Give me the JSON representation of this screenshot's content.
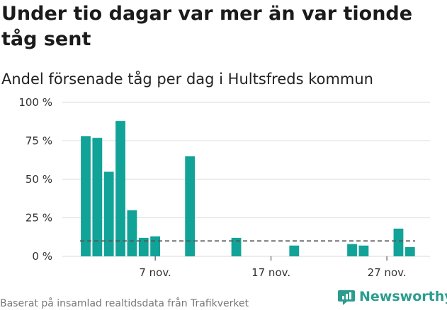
{
  "header": {
    "title": "Under tio dagar var mer än var tionde tåg sent",
    "subtitle": "Andel försenade tåg per dag i Hultsfreds kommun"
  },
  "footer": {
    "source": "Baserat på insamlad realtidsdata från Trafikverket",
    "brand": "Newsworthy",
    "brand_icon": "newsworthy-logo-icon"
  },
  "colors": {
    "bar": "#12a398",
    "grid": "#d8d8d8",
    "reference_line": "#555555",
    "brand": "#2a9d8f"
  },
  "chart_data": {
    "type": "bar",
    "x": [
      1,
      2,
      3,
      4,
      5,
      6,
      7,
      8,
      9,
      10,
      11,
      12,
      13,
      14,
      15,
      16,
      17,
      18,
      19,
      20,
      21,
      22,
      23,
      24,
      25,
      26,
      27,
      28,
      29,
      30
    ],
    "x_unit": "day of November",
    "values": [
      78,
      77,
      55,
      88,
      30,
      12,
      13,
      0,
      0,
      65,
      0,
      0,
      0,
      12,
      0,
      0,
      0,
      0,
      7,
      0,
      0,
      0,
      0,
      8,
      7,
      0,
      0,
      18,
      6,
      0
    ],
    "ylim": [
      0,
      100
    ],
    "y_ticks": [
      0,
      25,
      50,
      75,
      100
    ],
    "y_tick_labels": [
      "0 %",
      "25 %",
      "50 %",
      "75 %",
      "100 %"
    ],
    "x_ticks": [
      7,
      17,
      27
    ],
    "x_tick_labels": [
      "7 nov.",
      "17 nov.",
      "27 nov."
    ],
    "reference_line": 10,
    "grid": true,
    "title": "Under tio dagar var mer än var tionde tåg sent",
    "subtitle": "Andel försenade tåg per dag i Hultsfreds kommun",
    "xlabel": "",
    "ylabel": ""
  }
}
